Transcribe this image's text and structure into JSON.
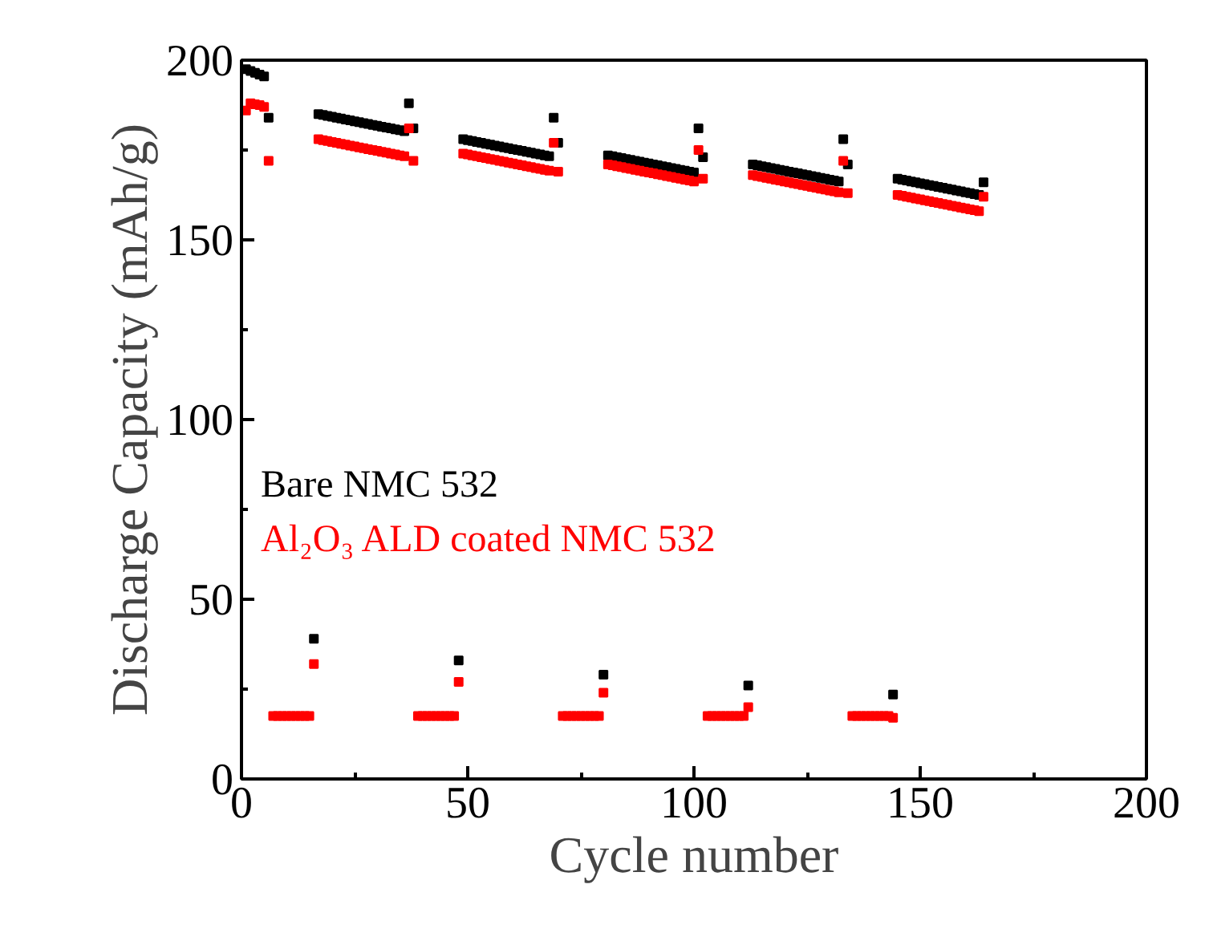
{
  "chart_data": {
    "type": "scatter",
    "xlabel": "Cycle number",
    "ylabel": "Discharge Capacity (mAh/g)",
    "x": [
      1,
      2,
      3,
      4,
      5,
      6,
      7,
      8,
      9,
      10,
      11,
      12,
      13,
      14,
      15,
      16,
      17,
      18,
      19,
      20,
      21,
      22,
      23,
      24,
      25,
      26,
      27,
      28,
      29,
      30,
      31,
      32,
      33,
      34,
      35,
      36,
      37,
      38,
      39,
      40,
      41,
      42,
      43,
      44,
      45,
      46,
      47,
      48,
      49,
      50,
      51,
      52,
      53,
      54,
      55,
      56,
      57,
      58,
      59,
      60,
      61,
      62,
      63,
      64,
      65,
      66,
      67,
      68,
      69,
      70,
      71,
      72,
      73,
      74,
      75,
      76,
      77,
      78,
      79,
      80,
      81,
      82,
      83,
      84,
      85,
      86,
      87,
      88,
      89,
      90,
      91,
      92,
      93,
      94,
      95,
      96,
      97,
      98,
      99,
      100,
      101,
      102,
      103,
      104,
      105,
      106,
      107,
      108,
      109,
      110,
      111,
      112,
      113,
      114,
      115,
      116,
      117,
      118,
      119,
      120,
      121,
      122,
      123,
      124,
      125,
      126,
      127,
      128,
      129,
      130,
      131,
      132,
      133,
      134,
      135,
      136,
      137,
      138,
      139,
      140,
      141,
      142,
      143,
      144,
      145,
      146,
      147,
      148,
      149,
      150,
      151,
      152,
      153,
      154,
      155,
      156,
      157,
      158,
      159,
      160,
      161,
      162,
      163,
      164
    ],
    "series": [
      {
        "name": "Bare NMC 532",
        "color": "#000000",
        "values": [
          197.5,
          197,
          196.5,
          196,
          195.5,
          184,
          null,
          null,
          null,
          null,
          null,
          null,
          null,
          null,
          null,
          39,
          185,
          184.75,
          184.5,
          184.25,
          184,
          183.75,
          183.5,
          183.25,
          183,
          182.75,
          182.5,
          182.25,
          182,
          181.75,
          181.5,
          181.25,
          181,
          180.75,
          180.5,
          180.25,
          188,
          181,
          null,
          null,
          null,
          null,
          null,
          null,
          null,
          null,
          null,
          33,
          178,
          177.75,
          177.5,
          177.25,
          177,
          176.75,
          176.5,
          176.25,
          176,
          175.75,
          175.5,
          175.25,
          175,
          174.75,
          174.5,
          174.25,
          174,
          173.75,
          173.5,
          173.25,
          184,
          177,
          null,
          null,
          null,
          null,
          null,
          null,
          null,
          null,
          null,
          29,
          173.5,
          173.25,
          173,
          172.75,
          172.5,
          172.25,
          172,
          171.75,
          171.5,
          171.25,
          171,
          170.75,
          170.5,
          170.25,
          170,
          169.75,
          169.5,
          169.25,
          169,
          168.75,
          181,
          173,
          null,
          null,
          null,
          null,
          null,
          null,
          null,
          null,
          null,
          26,
          171,
          170.75,
          170.5,
          170.25,
          170,
          169.75,
          169.5,
          169.25,
          169,
          168.75,
          168.5,
          168.25,
          168,
          167.75,
          167.5,
          167.25,
          167,
          166.75,
          166.5,
          166.25,
          178,
          171,
          null,
          null,
          null,
          null,
          null,
          null,
          null,
          null,
          null,
          23.5,
          167,
          166.75,
          166.5,
          166.25,
          166,
          165.75,
          165.5,
          165.25,
          165,
          164.75,
          164.5,
          164.25,
          164,
          163.75,
          163.5,
          163.25,
          163,
          162.75,
          162.5,
          166
        ]
      },
      {
        "name": "Al₂O₃ ALD coated NMC 532",
        "color": "#ff0000",
        "values": [
          186,
          188,
          187.75,
          187.5,
          187,
          172,
          17.5,
          17.5,
          17.5,
          17.5,
          17.5,
          17.5,
          17.5,
          17.5,
          17.5,
          32,
          178,
          177.75,
          177.5,
          177.25,
          177,
          176.75,
          176.5,
          176.25,
          176,
          175.75,
          175.5,
          175.25,
          175,
          174.75,
          174.5,
          174.25,
          174,
          173.75,
          173.5,
          173.25,
          181,
          172,
          17.5,
          17.5,
          17.5,
          17.5,
          17.5,
          17.5,
          17.5,
          17.5,
          17.5,
          27,
          174,
          173.75,
          173.5,
          173.25,
          173,
          172.75,
          172.5,
          172.25,
          172,
          171.75,
          171.5,
          171.25,
          171,
          170.75,
          170.5,
          170.25,
          170,
          169.75,
          169.5,
          169.25,
          177,
          169,
          17.5,
          17.5,
          17.5,
          17.5,
          17.5,
          17.5,
          17.5,
          17.5,
          17.5,
          24,
          171,
          170.75,
          170.5,
          170.25,
          170,
          169.75,
          169.5,
          169.25,
          169,
          168.75,
          168.5,
          168.25,
          168,
          167.75,
          167.5,
          167.25,
          167,
          166.75,
          166.5,
          166.25,
          175,
          167,
          17.5,
          17.5,
          17.5,
          17.5,
          17.5,
          17.5,
          17.5,
          17.5,
          17.5,
          20,
          168,
          167.75,
          167.5,
          167.25,
          167,
          166.75,
          166.5,
          166.25,
          166,
          165.75,
          165.5,
          165.25,
          165,
          164.75,
          164.5,
          164.25,
          164,
          163.75,
          163.5,
          163.25,
          172,
          163,
          17.5,
          17.5,
          17.5,
          17.5,
          17.5,
          17.5,
          17.5,
          17.5,
          17.5,
          17,
          162.5,
          162.25,
          162,
          161.75,
          161.5,
          161.25,
          161,
          160.75,
          160.5,
          160.25,
          160,
          159.75,
          159.5,
          159.25,
          159,
          158.75,
          158.5,
          158.25,
          158,
          162
        ]
      }
    ],
    "xlim": [
      0,
      200
    ],
    "ylim": [
      0,
      200
    ],
    "xticks": [
      0,
      50,
      100,
      150,
      200
    ],
    "yticks": [
      0,
      50,
      100,
      150,
      200
    ],
    "marker": "square",
    "grid": false,
    "legend": "left"
  }
}
